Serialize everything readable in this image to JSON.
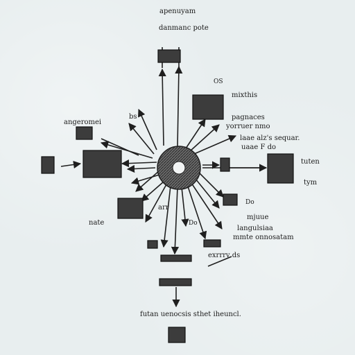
{
  "labels": {
    "top_title": "apenuyam",
    "top_sub": "danmanc pote",
    "top_right_a": "OS",
    "top_right_b": "mixthis",
    "right_upper_a": "pagnaces",
    "right_upper_b": "yorruer nmo",
    "right_upper_c": "laae alz's sequar.",
    "right_upper_d": "uaae F do",
    "left_top": "angeromei",
    "left_mid": "bs",
    "right_box_a": "tuten",
    "right_box_b": "tym",
    "left_bottom_a": "nate",
    "center_bottom": "arr",
    "right_bottom_a": "Do",
    "right_bottom_b": "mjuue",
    "right_bottom_c": "langulsiaa",
    "right_bottom_d": "mmte onnosatam",
    "center_low_a": "Do",
    "caption_bar": "exrrrv ds",
    "footer": "futan uenocsis sthet iheuncl."
  },
  "colors": {
    "box": "#3c3c3c",
    "line": "#1f1f1f",
    "hub": "#5a5a5a"
  }
}
